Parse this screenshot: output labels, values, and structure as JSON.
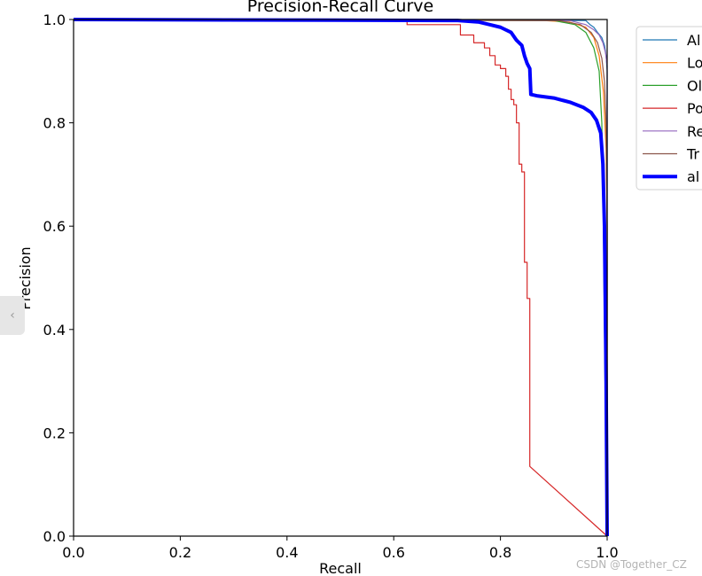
{
  "chart_data": {
    "type": "line",
    "title": "Precision-Recall Curve",
    "xlabel": "Recall",
    "ylabel": "Precision",
    "xlim": [
      0,
      1
    ],
    "ylim": [
      0,
      1
    ],
    "x_ticks": [
      "0.0",
      "0.2",
      "0.4",
      "0.6",
      "0.8",
      "1.0"
    ],
    "y_ticks": [
      "0.0",
      "0.2",
      "0.4",
      "0.6",
      "0.8",
      "1.0"
    ],
    "grid": false,
    "legend_placement": "outside-top-right",
    "series": [
      {
        "name": "Al",
        "color": "#1f77b4",
        "width": 1.2,
        "points": [
          [
            0,
            1
          ],
          [
            0.96,
            0.998
          ],
          [
            0.968,
            0.99
          ],
          [
            0.975,
            0.985
          ],
          [
            0.982,
            0.975
          ],
          [
            0.99,
            0.965
          ],
          [
            0.995,
            0.95
          ],
          [
            0.998,
            0.93
          ],
          [
            1.0,
            0.9
          ],
          [
            1.0,
            0.0
          ]
        ]
      },
      {
        "name": "Lo",
        "color": "#ff7f0e",
        "width": 1.2,
        "points": [
          [
            0,
            1
          ],
          [
            0.88,
            0.998
          ],
          [
            0.93,
            0.995
          ],
          [
            0.96,
            0.985
          ],
          [
            0.975,
            0.965
          ],
          [
            0.985,
            0.93
          ],
          [
            0.993,
            0.86
          ],
          [
            0.998,
            0.75
          ],
          [
            1.0,
            0.6
          ],
          [
            1.0,
            0.0
          ]
        ]
      },
      {
        "name": "Ol",
        "color": "#2ca02c",
        "width": 1.2,
        "points": [
          [
            0,
            1
          ],
          [
            0.9,
            0.998
          ],
          [
            0.94,
            0.99
          ],
          [
            0.96,
            0.975
          ],
          [
            0.975,
            0.945
          ],
          [
            0.985,
            0.9
          ],
          [
            0.99,
            0.8
          ],
          [
            0.993,
            0.6
          ],
          [
            0.996,
            0.3
          ],
          [
            1.0,
            0.0
          ]
        ]
      },
      {
        "name": "Po",
        "color": "#d62728",
        "width": 1.2,
        "points": [
          [
            0,
            1
          ],
          [
            0.625,
            1
          ],
          [
            0.625,
            0.99
          ],
          [
            0.725,
            0.99
          ],
          [
            0.725,
            0.97
          ],
          [
            0.75,
            0.97
          ],
          [
            0.75,
            0.955
          ],
          [
            0.77,
            0.955
          ],
          [
            0.77,
            0.945
          ],
          [
            0.78,
            0.945
          ],
          [
            0.78,
            0.93
          ],
          [
            0.79,
            0.93
          ],
          [
            0.79,
            0.912
          ],
          [
            0.8,
            0.912
          ],
          [
            0.8,
            0.905
          ],
          [
            0.81,
            0.905
          ],
          [
            0.81,
            0.89
          ],
          [
            0.815,
            0.89
          ],
          [
            0.815,
            0.865
          ],
          [
            0.82,
            0.865
          ],
          [
            0.82,
            0.845
          ],
          [
            0.825,
            0.845
          ],
          [
            0.825,
            0.835
          ],
          [
            0.83,
            0.835
          ],
          [
            0.83,
            0.8
          ],
          [
            0.835,
            0.8
          ],
          [
            0.835,
            0.72
          ],
          [
            0.84,
            0.72
          ],
          [
            0.84,
            0.705
          ],
          [
            0.845,
            0.705
          ],
          [
            0.845,
            0.53
          ],
          [
            0.85,
            0.53
          ],
          [
            0.85,
            0.46
          ],
          [
            0.855,
            0.46
          ],
          [
            0.855,
            0.135
          ],
          [
            1.0,
            0.0
          ]
        ]
      },
      {
        "name": "Re",
        "color": "#9467bd",
        "width": 1.2,
        "points": [
          [
            0,
            1
          ],
          [
            0.93,
            0.998
          ],
          [
            0.96,
            0.99
          ],
          [
            0.975,
            0.98
          ],
          [
            0.985,
            0.97
          ],
          [
            0.992,
            0.955
          ],
          [
            0.997,
            0.935
          ],
          [
            1.0,
            0.91
          ],
          [
            1.0,
            0.0
          ]
        ]
      },
      {
        "name": "Tr",
        "color": "#8c564b",
        "width": 1.2,
        "points": [
          [
            0,
            1
          ],
          [
            0.91,
            0.998
          ],
          [
            0.95,
            0.99
          ],
          [
            0.97,
            0.975
          ],
          [
            0.982,
            0.955
          ],
          [
            0.99,
            0.925
          ],
          [
            0.995,
            0.88
          ],
          [
            0.998,
            0.8
          ],
          [
            1.0,
            0.6
          ],
          [
            1.0,
            0.0
          ]
        ]
      },
      {
        "name": "al",
        "color": "#0000ff",
        "width": 4,
        "points": [
          [
            0,
            1
          ],
          [
            0.72,
            0.998
          ],
          [
            0.76,
            0.995
          ],
          [
            0.78,
            0.99
          ],
          [
            0.8,
            0.985
          ],
          [
            0.82,
            0.975
          ],
          [
            0.83,
            0.96
          ],
          [
            0.84,
            0.95
          ],
          [
            0.845,
            0.93
          ],
          [
            0.85,
            0.915
          ],
          [
            0.855,
            0.905
          ],
          [
            0.857,
            0.855
          ],
          [
            0.87,
            0.852
          ],
          [
            0.9,
            0.848
          ],
          [
            0.93,
            0.84
          ],
          [
            0.955,
            0.83
          ],
          [
            0.97,
            0.82
          ],
          [
            0.98,
            0.805
          ],
          [
            0.988,
            0.78
          ],
          [
            0.992,
            0.72
          ],
          [
            0.995,
            0.6
          ],
          [
            0.998,
            0.3
          ],
          [
            1.0,
            0.0
          ]
        ]
      }
    ]
  },
  "nav": {
    "side_tab_label": "‹"
  },
  "watermark": "CSDN @Together_CZ"
}
